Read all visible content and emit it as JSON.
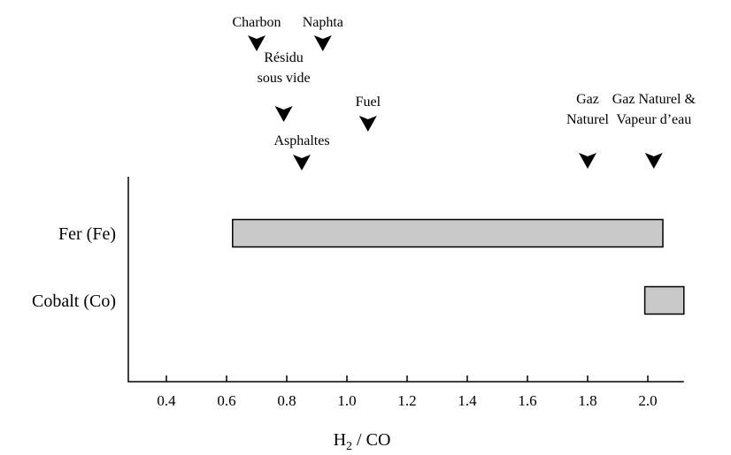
{
  "chart_data": {
    "type": "bar",
    "orientation": "horizontal-range",
    "categories": [
      "Fer (Fe)",
      "Cobalt (Co)"
    ],
    "ranges": [
      {
        "category": "Fer (Fe)",
        "start": 0.62,
        "end": 2.05
      },
      {
        "category": "Cobalt (Co)",
        "start": 1.99,
        "end": 2.12
      }
    ],
    "xlabel_main": "H",
    "xlabel_sub": "2",
    "xlabel_rest": " / CO",
    "xlim": [
      0.28,
      2.12
    ],
    "xticks": [
      "0.4",
      "0.6",
      "0.8",
      "1.0",
      "1.2",
      "1.4",
      "1.6",
      "1.8",
      "2.0"
    ],
    "grid": false,
    "annotations": [
      {
        "x": 0.7,
        "lines": [
          "Charbon"
        ]
      },
      {
        "x": 0.92,
        "lines": [
          "Naphta"
        ]
      },
      {
        "x": 0.79,
        "lines": [
          "Résidu",
          "sous vide"
        ]
      },
      {
        "x": 1.07,
        "lines": [
          "Fuel"
        ]
      },
      {
        "x": 0.85,
        "lines": [
          "Asphaltes"
        ]
      },
      {
        "x": 1.8,
        "lines": [
          "Gaz",
          "Naturel"
        ]
      },
      {
        "x": 2.02,
        "lines": [
          "Gaz Naturel &",
          "Vapeur d’eau"
        ]
      }
    ]
  }
}
